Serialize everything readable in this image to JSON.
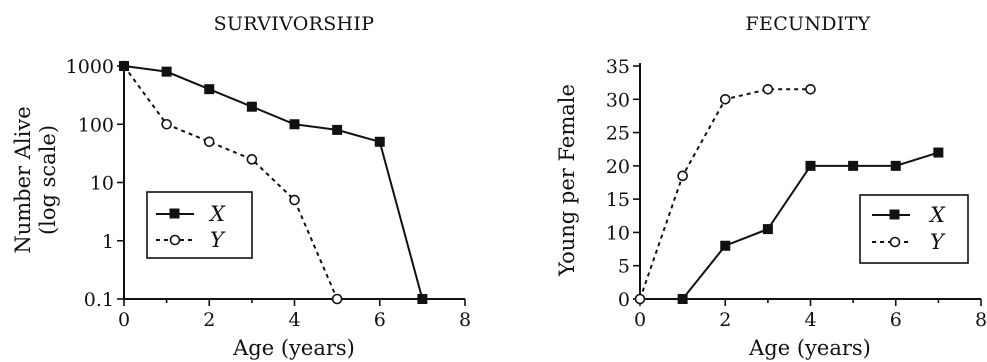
{
  "chart_data": [
    {
      "type": "line",
      "title": "SURVIVORSHIP",
      "xlabel": "Age (years)",
      "ylabel": "Number Alive\n(log scale)",
      "yscale": "log",
      "xlim": [
        0,
        8
      ],
      "ylim": [
        0.1,
        1000
      ],
      "xticks": [
        "0",
        "2",
        "4",
        "6",
        "8"
      ],
      "yticks": [
        "1000",
        "100",
        "10",
        "1",
        "0.1"
      ],
      "legend_placement": "lower-left",
      "series": [
        {
          "name": "X",
          "style": "solid-filled-square",
          "x": [
            0,
            1,
            2,
            3,
            4,
            5,
            6,
            7
          ],
          "y": [
            1000,
            800,
            400,
            200,
            100,
            80,
            50,
            0.1
          ]
        },
        {
          "name": "Y",
          "style": "dashed-open-circle",
          "x": [
            0,
            1,
            2,
            3,
            4,
            5
          ],
          "y": [
            1000,
            100,
            50,
            25,
            5,
            0.1
          ]
        }
      ]
    },
    {
      "type": "line",
      "title": "FECUNDITY",
      "xlabel": "Age (years)",
      "ylabel": "Young per Female",
      "yscale": "linear",
      "xlim": [
        0,
        8
      ],
      "ylim": [
        0,
        35
      ],
      "xticks": [
        "0",
        "2",
        "4",
        "6",
        "8"
      ],
      "yticks": [
        "35",
        "30",
        "25",
        "20",
        "15",
        "10",
        "5",
        "0"
      ],
      "legend_placement": "lower-right",
      "series": [
        {
          "name": "X",
          "style": "solid-filled-square",
          "x": [
            1,
            2,
            3,
            4,
            5,
            6,
            7
          ],
          "y": [
            0,
            8,
            10.5,
            20,
            20,
            20,
            22
          ]
        },
        {
          "name": "Y",
          "style": "dashed-open-circle",
          "x": [
            0,
            1,
            2,
            3,
            4
          ],
          "y": [
            0,
            18.5,
            30,
            31.5,
            31.5
          ]
        }
      ]
    }
  ]
}
